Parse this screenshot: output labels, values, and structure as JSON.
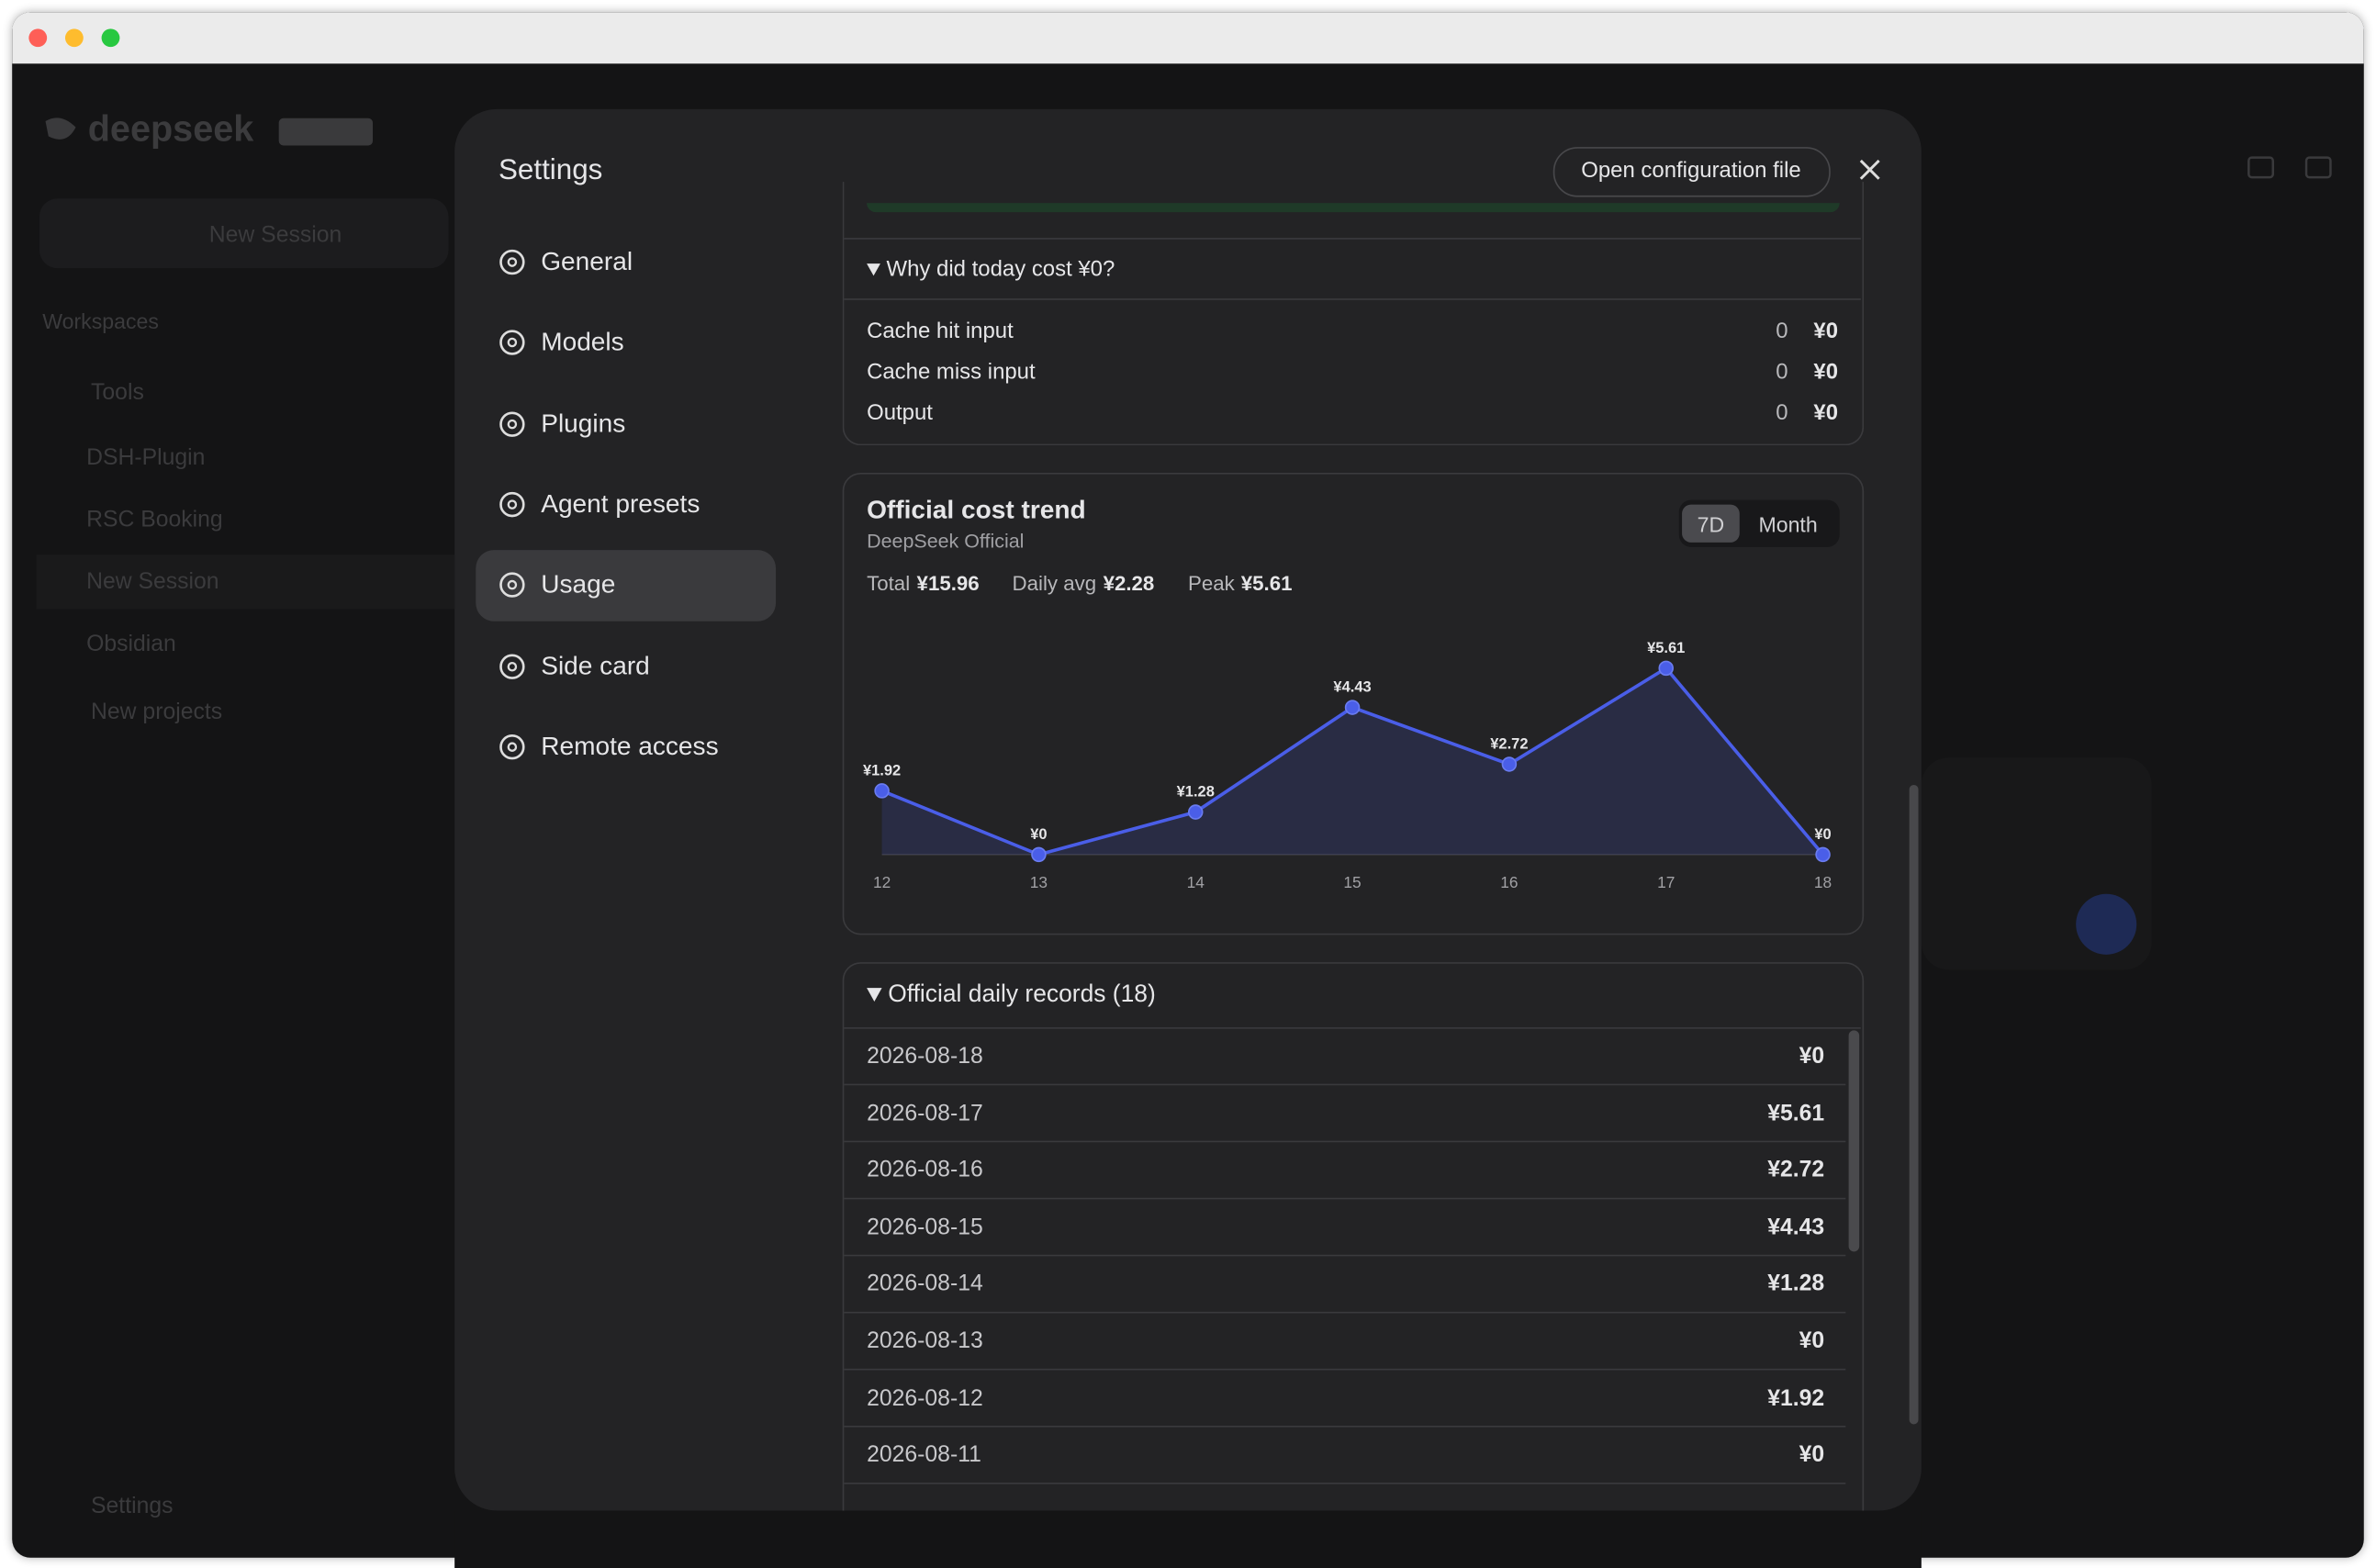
{
  "background": {
    "app_name": "deepseek",
    "new_session_button": "New Session",
    "workspaces": "Workspaces",
    "items": [
      "Tools",
      "DSH-Plugin",
      "RSC Booking",
      "New Session",
      "Obsidian",
      "New projects"
    ],
    "footer": "Settings"
  },
  "settings": {
    "title": "Settings",
    "open_config": "Open configuration file",
    "nav": [
      "General",
      "Models",
      "Plugins",
      "Agent presets",
      "Usage",
      "Side card",
      "Remote access"
    ],
    "active_nav": 4
  },
  "breakdown": {
    "heading": "Why did today cost ¥0?",
    "rows": [
      {
        "label": "Cache hit input",
        "tokens": "0",
        "cost": "¥0"
      },
      {
        "label": "Cache miss input",
        "tokens": "0",
        "cost": "¥0"
      },
      {
        "label": "Output",
        "tokens": "0",
        "cost": "¥0"
      }
    ]
  },
  "trend": {
    "title": "Official cost trend",
    "subtitle": "DeepSeek Official",
    "ranges": [
      "7D",
      "Month"
    ],
    "active_range": 0,
    "stats": [
      {
        "label": "Total",
        "value": "¥15.96"
      },
      {
        "label": "Daily avg",
        "value": "¥2.28"
      },
      {
        "label": "Peak",
        "value": "¥5.61"
      }
    ]
  },
  "chart_data": {
    "type": "line",
    "categories": [
      "12",
      "13",
      "14",
      "15",
      "16",
      "17",
      "18"
    ],
    "values": [
      1.92,
      0,
      1.28,
      4.43,
      2.72,
      5.61,
      0
    ],
    "value_labels": [
      "¥1.92",
      "¥0",
      "¥1.28",
      "¥4.43",
      "¥2.72",
      "¥5.61",
      "¥0"
    ],
    "color": "#4a5ee8"
  },
  "records": {
    "heading": "Official daily records (18)",
    "rows": [
      [
        "2026-08-18",
        "¥0"
      ],
      [
        "2026-08-17",
        "¥5.61"
      ],
      [
        "2026-08-16",
        "¥2.72"
      ],
      [
        "2026-08-15",
        "¥4.43"
      ],
      [
        "2026-08-14",
        "¥1.28"
      ],
      [
        "2026-08-13",
        "¥0"
      ],
      [
        "2026-08-12",
        "¥1.92"
      ],
      [
        "2026-08-11",
        "¥0"
      ]
    ]
  }
}
